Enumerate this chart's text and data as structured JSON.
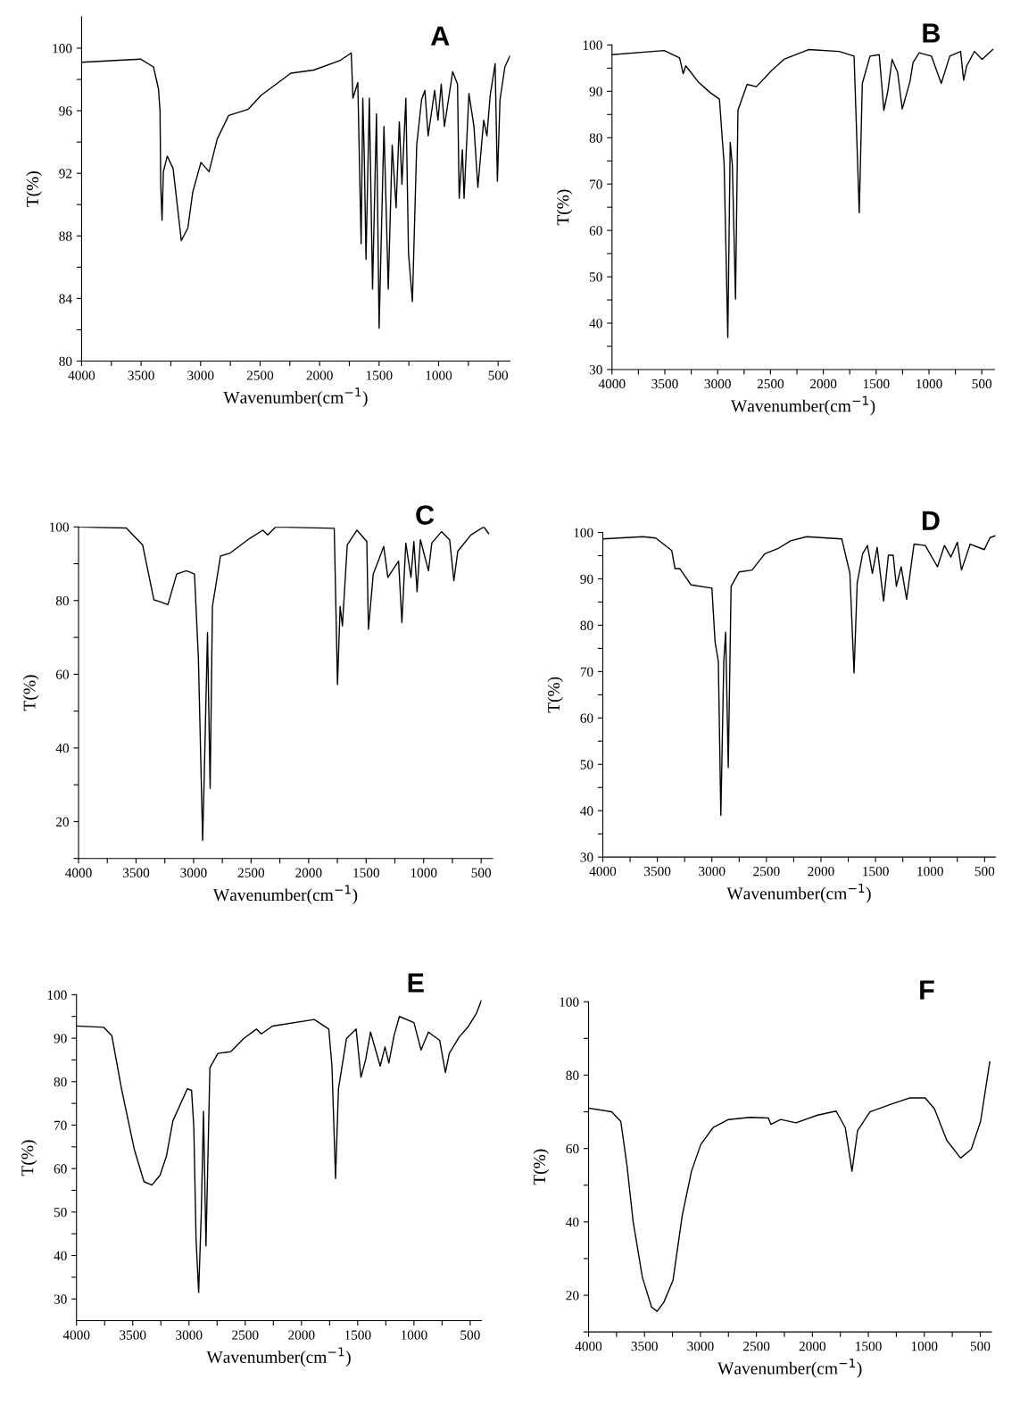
{
  "chart_data": [
    {
      "type": "line",
      "title": "A",
      "xlabel": "Wavenumber(cm$^{−1}$)",
      "ylabel": "T(%)",
      "xlim": [
        4000,
        400
      ],
      "ylim": [
        80,
        102
      ],
      "xticks": [
        4000,
        {
          "value": 3750,
          "label": null
        },
        3500,
        {
          "value": 3250,
          "label": null
        },
        3000,
        {
          "value": 2750,
          "label": null
        },
        2500,
        {
          "value": 2250,
          "label": null
        },
        2000,
        {
          "value": 1750,
          "label": null
        },
        1500,
        {
          "value": 1250,
          "label": null
        },
        1000,
        {
          "value": 750,
          "label": null
        },
        500
      ],
      "yticks": [
        80,
        {
          "value": 82,
          "label": null
        },
        84,
        {
          "value": 86,
          "label": null
        },
        88,
        {
          "value": 90,
          "label": null
        },
        92,
        {
          "value": 94,
          "label": null
        },
        96,
        {
          "value": 98,
          "label": null
        },
        100
      ],
      "series": [
        {
          "color": "#000000",
          "line_style": "solid",
          "x": [
            4000,
            3505,
            3396,
            3354,
            3341,
            3335,
            3324,
            3313,
            3280,
            3231,
            3162,
            3107,
            3066,
            2997,
            2929,
            2860,
            2764,
            2599,
            2489,
            2365,
            2242,
            2050,
            1830,
            1734,
            1720,
            1679,
            1651,
            1637,
            1624,
            1610,
            1582,
            1555,
            1522,
            1500,
            1459,
            1423,
            1390,
            1357,
            1330,
            1308,
            1275,
            1253,
            1220,
            1184,
            1143,
            1115,
            1088,
            1033,
            1005,
            978,
            951,
            882,
            841,
            827,
            800,
            786,
            745,
            703,
            670,
            621,
            594,
            566,
            525,
            506,
            484,
            443,
            401
          ],
          "values": [
            99.1,
            99.3,
            98.8,
            97.4,
            96.0,
            91.3,
            89.0,
            92.1,
            93.1,
            92.3,
            87.7,
            88.5,
            90.8,
            92.7,
            92.1,
            94.2,
            95.7,
            96.1,
            97.0,
            97.7,
            98.4,
            98.6,
            99.2,
            99.7,
            96.8,
            97.8,
            87.5,
            96.8,
            92.9,
            86.5,
            96.8,
            84.6,
            95.8,
            82.1,
            95.0,
            84.6,
            93.8,
            89.8,
            95.3,
            91.3,
            96.8,
            86.9,
            83.8,
            93.8,
            96.7,
            97.3,
            94.4,
            97.3,
            95.4,
            97.7,
            95.0,
            98.5,
            97.7,
            90.4,
            93.5,
            90.4,
            97.1,
            95.0,
            91.1,
            95.4,
            94.4,
            97.0,
            99.0,
            91.5,
            96.7,
            98.8,
            99.5
          ]
        }
      ]
    },
    {
      "type": "line",
      "title": "B",
      "xlabel": "Wavenumber(cm$^{−1}$)",
      "ylabel": "T(%)",
      "xlim": [
        4000,
        380
      ],
      "ylim": [
        30,
        100
      ],
      "xticks": [
        4000,
        {
          "value": 3750,
          "label": null
        },
        3500,
        {
          "value": 3250,
          "label": null
        },
        3000,
        {
          "value": 2750,
          "label": null
        },
        2500,
        {
          "value": 2250,
          "label": null
        },
        2000,
        {
          "value": 1750,
          "label": null
        },
        1500,
        {
          "value": 1250,
          "label": null
        },
        1000,
        {
          "value": 750,
          "label": null
        },
        500
      ],
      "yticks": [
        30,
        {
          "value": 35,
          "label": null
        },
        40,
        {
          "value": 45,
          "label": null
        },
        50,
        {
          "value": 55,
          "label": null
        },
        60,
        {
          "value": 65,
          "label": null
        },
        70,
        {
          "value": 75,
          "label": null
        },
        80,
        {
          "value": 85,
          "label": null
        },
        90,
        {
          "value": 95,
          "label": null
        },
        100
      ],
      "series": [
        {
          "color": "#000000",
          "line_style": "solid",
          "x": [
            4000,
            3506,
            3360,
            3326,
            3302,
            3186,
            3070,
            2983,
            2954,
            2939,
            2904,
            2881,
            2861,
            2831,
            2808,
            2721,
            2634,
            2489,
            2372,
            2140,
            1849,
            1709,
            1660,
            1631,
            1558,
            1471,
            1427,
            1390,
            1349,
            1297,
            1253,
            1180,
            1151,
            1093,
            977,
            884,
            803,
            701,
            672,
            643,
            570,
            498,
            396
          ],
          "values": [
            97.9,
            98.8,
            97.2,
            93.8,
            95.5,
            92.1,
            89.7,
            88.3,
            79.0,
            74.5,
            36.9,
            79.0,
            74.1,
            45.2,
            85.9,
            91.5,
            91.0,
            94.5,
            96.9,
            99.0,
            98.6,
            97.6,
            63.8,
            91.7,
            97.6,
            97.9,
            85.9,
            90.0,
            96.9,
            94.1,
            86.2,
            92.1,
            96.2,
            98.3,
            97.6,
            91.7,
            97.6,
            98.6,
            92.4,
            95.5,
            98.6,
            96.9,
            99.0
          ]
        }
      ]
    },
    {
      "type": "line",
      "title": "C",
      "xlabel": "Wavenumber(cm$^{−1}$)",
      "ylabel": "T(%)",
      "xlim": [
        4000,
        400
      ],
      "ylim": [
        10,
        100
      ],
      "xticks": [
        4000,
        {
          "value": 3750,
          "label": null
        },
        3500,
        {
          "value": 3250,
          "label": null
        },
        3000,
        {
          "value": 2750,
          "label": null
        },
        2500,
        {
          "value": 2250,
          "label": null
        },
        2000,
        {
          "value": 1750,
          "label": null
        },
        1500,
        {
          "value": 1250,
          "label": null
        },
        1000,
        {
          "value": 750,
          "label": null
        },
        500
      ],
      "yticks": [
        {
          "value": 10,
          "label": null
        },
        20,
        {
          "value": 30,
          "label": null
        },
        40,
        {
          "value": 50,
          "label": null
        },
        60,
        {
          "value": 70,
          "label": null
        },
        80,
        {
          "value": 90,
          "label": null
        },
        100
      ],
      "series": [
        {
          "color": "#000000",
          "line_style": "solid",
          "x": [
            4000,
            3585,
            3443,
            3345,
            3302,
            3223,
            3147,
            3062,
            2992,
            2958,
            2921,
            2907,
            2879,
            2856,
            2836,
            2766,
            2681,
            2511,
            2398,
            2356,
            2285,
            1777,
            1749,
            1726,
            1706,
            1664,
            1579,
            1494,
            1480,
            1438,
            1395,
            1347,
            1311,
            1254,
            1218,
            1189,
            1155,
            1110,
            1085,
            1057,
            1028,
            958,
            929,
            845,
            774,
            737,
            703,
            590,
            477,
            435
          ],
          "values": [
            100,
            99.7,
            95.1,
            80.2,
            79.8,
            78.9,
            87.2,
            88.1,
            87.2,
            64.3,
            14.9,
            32.5,
            71.3,
            29.0,
            78.4,
            92.1,
            92.9,
            96.9,
            99.1,
            97.8,
            100,
            99.6,
            57.2,
            78.4,
            73.1,
            95.1,
            99.1,
            96.0,
            72.2,
            87.2,
            90.7,
            94.7,
            86.3,
            89.0,
            90.7,
            74.0,
            95.6,
            86.3,
            96.0,
            82.4,
            96.5,
            88.1,
            95.6,
            98.7,
            96.5,
            85.4,
            93.4,
            97.8,
            100,
            98.2
          ]
        }
      ]
    },
    {
      "type": "line",
      "title": "D",
      "xlabel": "Wavenumber(cm$^{−1}$)",
      "ylabel": "T(%)",
      "xlim": [
        4000,
        400
      ],
      "ylim": [
        30,
        100
      ],
      "xticks": [
        4000,
        {
          "value": 3750,
          "label": null
        },
        3500,
        {
          "value": 3250,
          "label": null
        },
        3000,
        {
          "value": 2750,
          "label": null
        },
        2500,
        {
          "value": 2250,
          "label": null
        },
        2000,
        {
          "value": 1750,
          "label": null
        },
        1500,
        {
          "value": 1250,
          "label": null
        },
        1000,
        {
          "value": 750,
          "label": null
        },
        500
      ],
      "yticks": [
        30,
        {
          "value": 35,
          "label": null
        },
        40,
        {
          "value": 45,
          "label": null
        },
        50,
        {
          "value": 55,
          "label": null
        },
        60,
        {
          "value": 65,
          "label": null
        },
        70,
        {
          "value": 75,
          "label": null
        },
        80,
        {
          "value": 85,
          "label": null
        },
        90,
        {
          "value": 95,
          "label": null
        },
        100
      ],
      "series": [
        {
          "color": "#000000",
          "line_style": "solid",
          "x": [
            4000,
            3632,
            3515,
            3368,
            3338,
            3294,
            3191,
            3000,
            2971,
            2941,
            2918,
            2891,
            2874,
            2850,
            2824,
            2750,
            2632,
            2515,
            2397,
            2279,
            2132,
            1809,
            1735,
            1697,
            1668,
            1618,
            1574,
            1529,
            1485,
            1426,
            1382,
            1338,
            1309,
            1265,
            1215,
            1147,
            1044,
            932,
            868,
            809,
            750,
            712,
            632,
            503,
            450,
            400
          ],
          "values": [
            98.6,
            99.1,
            98.8,
            96.1,
            92.2,
            92.2,
            88.7,
            88.0,
            76.4,
            72.2,
            39.0,
            72.2,
            78.5,
            49.3,
            88.4,
            91.5,
            91.9,
            95.4,
            96.5,
            98.2,
            99.1,
            98.6,
            91.2,
            69.7,
            89.1,
            95.4,
            97.2,
            91.2,
            96.8,
            85.2,
            95.1,
            95.1,
            88.4,
            92.6,
            85.6,
            97.5,
            97.2,
            92.6,
            97.2,
            94.7,
            97.9,
            91.9,
            97.5,
            96.3,
            98.9,
            99.3
          ]
        }
      ]
    },
    {
      "type": "line",
      "title": "E",
      "xlabel": "Wavenumber(cm$^{−1}$)",
      "ylabel": "T(%)",
      "xlim": [
        4000,
        400
      ],
      "ylim": [
        25,
        100
      ],
      "xticks": [
        4000,
        {
          "value": 3750,
          "label": null
        },
        3500,
        {
          "value": 3250,
          "label": null
        },
        3000,
        {
          "value": 2750,
          "label": null
        },
        2500,
        {
          "value": 2250,
          "label": null
        },
        2000,
        {
          "value": 1750,
          "label": null
        },
        1500,
        {
          "value": 1250,
          "label": null
        },
        1000,
        {
          "value": 750,
          "label": null
        },
        500
      ],
      "yticks": [
        30,
        {
          "value": 35,
          "label": null
        },
        40,
        {
          "value": 45,
          "label": null
        },
        50,
        {
          "value": 55,
          "label": null
        },
        60,
        {
          "value": 65,
          "label": null
        },
        70,
        {
          "value": 75,
          "label": null
        },
        80,
        {
          "value": 85,
          "label": null
        },
        90,
        {
          "value": 95,
          "label": null
        },
        100
      ],
      "series": [
        {
          "color": "#000000",
          "line_style": "solid",
          "x": [
            4000,
            3757,
            3686,
            3600,
            3486,
            3400,
            3329,
            3257,
            3200,
            3143,
            3014,
            2977,
            2957,
            2937,
            2914,
            2891,
            2871,
            2849,
            2814,
            2743,
            2629,
            2514,
            2400,
            2357,
            2257,
            1886,
            1757,
            1729,
            1697,
            1671,
            1600,
            1514,
            1471,
            1429,
            1386,
            1300,
            1257,
            1223,
            1177,
            1129,
            1000,
            937,
            871,
            771,
            720,
            686,
            600,
            514,
            443,
            400
          ],
          "values": [
            92.8,
            92.5,
            90.6,
            78.4,
            64.4,
            57.0,
            56.2,
            58.5,
            62.9,
            71.0,
            78.4,
            78.0,
            69.5,
            43.7,
            31.5,
            49.5,
            73.2,
            42.2,
            83.2,
            86.5,
            86.9,
            89.9,
            92.1,
            91.0,
            92.8,
            94.3,
            92.1,
            83.6,
            57.7,
            78.4,
            89.9,
            92.1,
            81.0,
            85.1,
            91.4,
            83.6,
            88.0,
            84.3,
            90.6,
            95.0,
            93.6,
            87.3,
            91.4,
            89.5,
            82.1,
            86.5,
            90.2,
            92.8,
            95.8,
            98.7
          ]
        }
      ]
    },
    {
      "type": "line",
      "title": "F",
      "xlabel": "Wavenumber(cm$^{−1}$)",
      "ylabel": "T(%)",
      "xlim": [
        4000,
        400
      ],
      "ylim": [
        10,
        100
      ],
      "xticks": [
        4000,
        {
          "value": 3750,
          "label": null
        },
        3500,
        {
          "value": 3250,
          "label": null
        },
        3000,
        {
          "value": 2750,
          "label": null
        },
        2500,
        {
          "value": 2250,
          "label": null
        },
        2000,
        {
          "value": 1750,
          "label": null
        },
        1500,
        {
          "value": 1250,
          "label": null
        },
        1000,
        {
          "value": 750,
          "label": null
        },
        500
      ],
      "yticks": [
        {
          "value": 10,
          "label": null
        },
        20,
        {
          "value": 30,
          "label": null
        },
        40,
        {
          "value": 50,
          "label": null
        },
        60,
        {
          "value": 70,
          "label": null
        },
        80,
        {
          "value": 90,
          "label": null
        },
        100
      ],
      "series": [
        {
          "color": "#000000",
          "line_style": "solid",
          "x": [
            4000,
            3794,
            3712,
            3657,
            3602,
            3519,
            3437,
            3387,
            3327,
            3245,
            3162,
            3080,
            2997,
            2887,
            2750,
            2558,
            2393,
            2371,
            2283,
            2146,
            1953,
            1788,
            1706,
            1646,
            1596,
            1486,
            1294,
            1129,
            992,
            909,
            800,
            676,
            580,
            497,
            415
          ],
          "values": [
            71.0,
            70.0,
            67.4,
            55.5,
            40.2,
            24.9,
            16.8,
            15.6,
            18.1,
            24.1,
            41.9,
            53.8,
            61.1,
            65.7,
            67.9,
            68.5,
            68.3,
            66.6,
            67.9,
            67.0,
            69.1,
            70.2,
            65.7,
            53.8,
            64.9,
            70.0,
            72.1,
            73.8,
            73.8,
            70.8,
            62.3,
            57.4,
            59.8,
            67.4,
            83.6
          ]
        }
      ]
    }
  ]
}
